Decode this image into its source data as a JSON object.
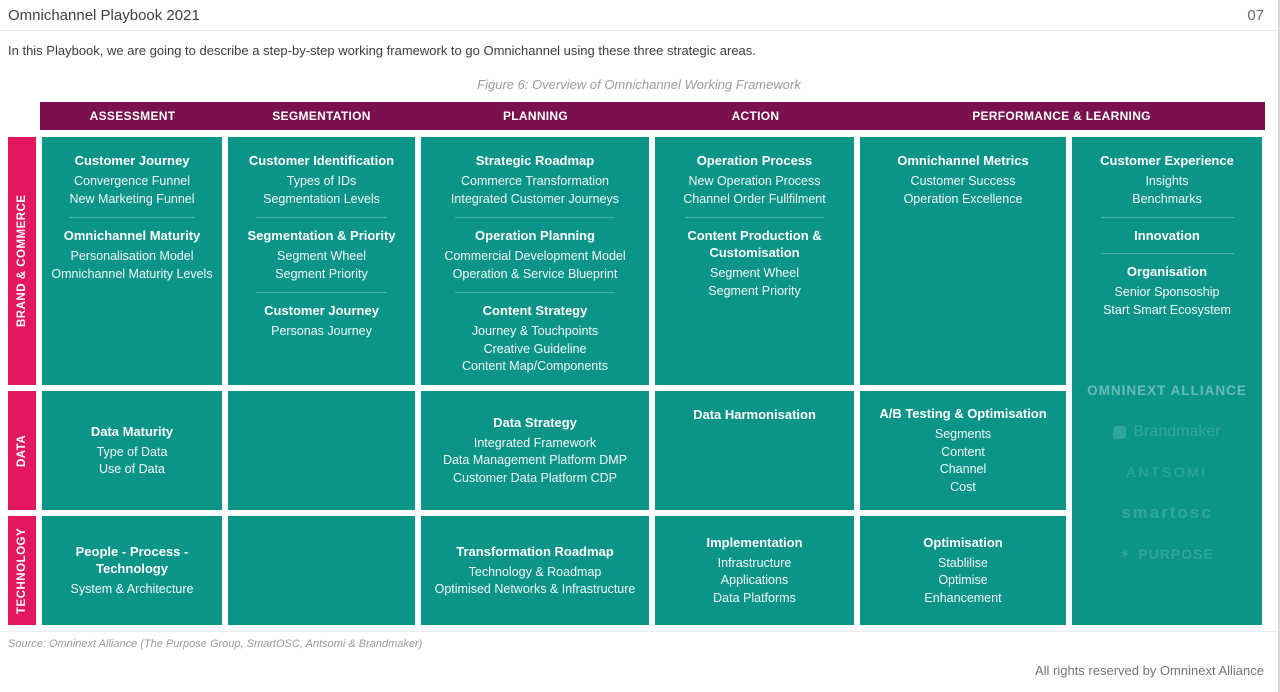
{
  "page": {
    "title": "Omnichannel Playbook 2021",
    "page_number": "07",
    "intro": "In this Playbook, we are going to describe a step-by-step working framework to go Omnichannel using these three strategic areas.",
    "figure_caption": "Figure 6: Overview of Omnichannel Working Framework",
    "source_note": "Source: Omninext Alliance (The Purpose Group, SmartOSC, Antsomi & Brandmaker)",
    "rights_note": "All rights reserved by Omninext Alliance"
  },
  "colors": {
    "header_bar": "#7a104d",
    "row_label_pink": "#e3175f",
    "cell_teal": "#0b9488"
  },
  "table": {
    "headers": [
      "ASSESSMENT",
      "SEGMENTATION",
      "PLANNING",
      "ACTION",
      "PERFORMANCE & LEARNING"
    ],
    "rows": [
      {
        "label": "BRAND & COMMERCE",
        "cells": [
          {
            "groups": [
              {
                "heading": "Customer Journey",
                "items": [
                  "Convergence Funnel",
                  "New Marketing Funnel"
                ]
              },
              {
                "heading": "Omnichannel Maturity",
                "items": [
                  "Personalisation Model",
                  "Omnichannel Maturity Levels"
                ]
              }
            ]
          },
          {
            "groups": [
              {
                "heading": "Customer Identification",
                "items": [
                  "Types of IDs",
                  "Segmentation Levels"
                ]
              },
              {
                "heading": "Segmentation & Priority",
                "items": [
                  "Segment Wheel",
                  "Segment Priority"
                ]
              },
              {
                "heading": "Customer Journey",
                "items": [
                  "Personas Journey"
                ]
              }
            ]
          },
          {
            "groups": [
              {
                "heading": "Strategic Roadmap",
                "items": [
                  "Commerce Transformation",
                  "Integrated Customer Journeys"
                ]
              },
              {
                "heading": "Operation Planning",
                "items": [
                  "Commercial Development Model",
                  "Operation & Service Blueprint"
                ]
              },
              {
                "heading": "Content Strategy",
                "items": [
                  "Journey & Touchpoints",
                  "Creative Guideline",
                  "Content Map/Components"
                ]
              }
            ]
          },
          {
            "groups": [
              {
                "heading": "Operation Process",
                "items": [
                  "New Operation Process",
                  "Channel Order Fullfilment"
                ]
              },
              {
                "heading": "Content Production & Customisation",
                "items": [
                  "Segment Wheel",
                  "Segment Priority"
                ]
              }
            ]
          },
          {
            "groups": [
              {
                "heading": "Omnichannel Metrics",
                "items": [
                  "Customer Success",
                  "Operation Excellence"
                ]
              }
            ]
          }
        ]
      },
      {
        "label": "DATA",
        "cells": [
          {
            "groups": [
              {
                "heading": "Data Maturity",
                "items": [
                  "Type of Data",
                  "Use of Data"
                ]
              }
            ]
          },
          {
            "groups": []
          },
          {
            "groups": [
              {
                "heading": "Data Strategy",
                "items": [
                  "Integrated Framework",
                  "Data Management Platform DMP",
                  "Customer Data Platform CDP"
                ]
              }
            ]
          },
          {
            "groups": [
              {
                "heading": "Data Harmonisation",
                "items": []
              }
            ]
          },
          {
            "groups": [
              {
                "heading": "A/B Testing & Optimisation",
                "items": [
                  "Segments",
                  "Content",
                  "Channel",
                  "Cost"
                ]
              }
            ]
          }
        ]
      },
      {
        "label": "TECHNOLOGY",
        "cells": [
          {
            "groups": [
              {
                "heading": "People - Process - Technology",
                "items": [
                  "System & Architecture"
                ]
              }
            ]
          },
          {
            "groups": []
          },
          {
            "groups": [
              {
                "heading": "Transformation Roadmap",
                "items": [
                  "Technology & Roadmap",
                  "Optimised Networks & Infrastructure"
                ]
              }
            ]
          },
          {
            "groups": [
              {
                "heading": "Implementation",
                "items": [
                  "Infrastructure",
                  "Applications",
                  "Data Platforms"
                ]
              }
            ]
          },
          {
            "groups": [
              {
                "heading": "Optimisation",
                "items": [
                  "Stablilise",
                  "Optimise",
                  "Enhancement"
                ]
              }
            ]
          }
        ]
      }
    ],
    "experience_column": {
      "groups": [
        {
          "heading": "Customer Experience",
          "items": [
            "Insights",
            "Benchmarks"
          ]
        },
        {
          "heading": "Innovation",
          "items": []
        },
        {
          "heading": "Organisation",
          "items": [
            "Senior Sponsoship",
            "Start Smart Ecosystem"
          ]
        }
      ],
      "watermark": {
        "title": "OMNINEXT ALLIANCE",
        "logos": [
          "Brandmaker",
          "ANTSOMI",
          "smartosc",
          "PURPOSE"
        ]
      }
    }
  }
}
